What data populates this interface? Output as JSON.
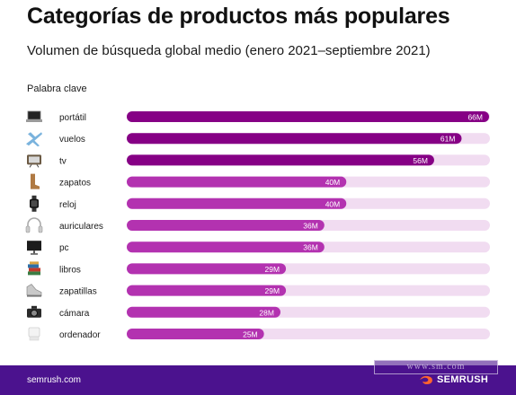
{
  "title": "Categorías de productos más populares",
  "subtitle": "Volumen de búsqueda global medio (enero 2021–septiembre 2021)",
  "column_header": "Palabra clave",
  "footer": {
    "url": "semrush.com",
    "watermark": "www.sm.com",
    "brand": "SEMRUSH"
  },
  "colors": {
    "bar_dark": "#860085",
    "bar_mid": "#b332b0",
    "track": "#f1dcf1",
    "footer_bg": "#4b128e",
    "brand_orange": "#ff642d"
  },
  "icons": [
    "laptop-icon",
    "airplane-icon",
    "tv-icon",
    "boot-icon",
    "smartwatch-icon",
    "headphones-icon",
    "monitor-icon",
    "books-icon",
    "sneaker-icon",
    "camera-icon",
    "computer-icon"
  ],
  "chart_data": {
    "type": "bar",
    "orientation": "horizontal",
    "categories": [
      "portátil",
      "vuelos",
      "tv",
      "zapatos",
      "reloj",
      "auriculares",
      "pc",
      "libros",
      "zapatillas",
      "cámara",
      "ordenador"
    ],
    "values": [
      66,
      61,
      56,
      40,
      40,
      36,
      36,
      29,
      29,
      28,
      25
    ],
    "value_labels": [
      "66M",
      "61M",
      "56M",
      "40M",
      "40M",
      "36M",
      "36M",
      "29M",
      "29M",
      "28M",
      "25M"
    ],
    "unit": "M",
    "xlim": [
      0,
      66
    ],
    "title": "Categorías de productos más populares",
    "subtitle": "Volumen de búsqueda global medio (enero 2021–septiembre 2021)",
    "legend": "none",
    "grid": false
  }
}
